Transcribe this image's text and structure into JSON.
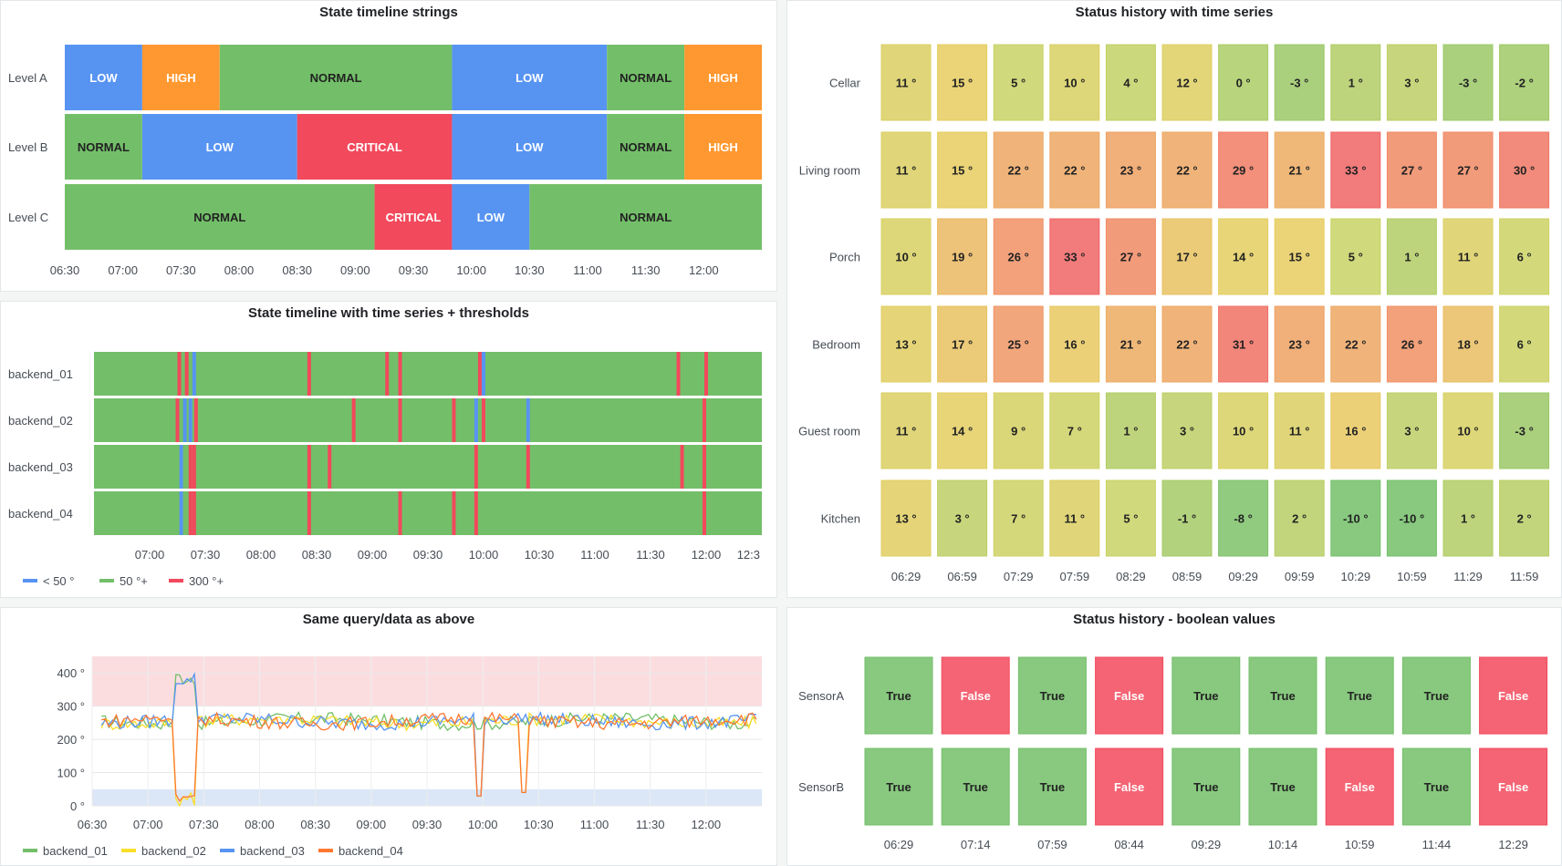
{
  "panels": {
    "state_strings": {
      "title": "State timeline strings",
      "rows": [
        {
          "label": "Level A",
          "segments": [
            [
              "06:30",
              "07:10",
              "LOW"
            ],
            [
              "07:10",
              "07:50",
              "HIGH"
            ],
            [
              "07:50",
              "09:50",
              "NORMAL"
            ],
            [
              "09:50",
              "11:10",
              "LOW"
            ],
            [
              "11:10",
              "11:50",
              "NORMAL"
            ],
            [
              "11:50",
              "12:30",
              "HIGH"
            ]
          ]
        },
        {
          "label": "Level B",
          "segments": [
            [
              "06:30",
              "07:10",
              "NORMAL"
            ],
            [
              "07:10",
              "08:30",
              "LOW"
            ],
            [
              "08:30",
              "09:50",
              "CRITICAL"
            ],
            [
              "09:50",
              "11:10",
              "LOW"
            ],
            [
              "11:10",
              "11:50",
              "NORMAL"
            ],
            [
              "11:50",
              "12:30",
              "HIGH"
            ]
          ]
        },
        {
          "label": "Level C",
          "segments": [
            [
              "06:30",
              "09:10",
              "NORMAL"
            ],
            [
              "09:10",
              "09:50",
              "CRITICAL"
            ],
            [
              "09:50",
              "10:30",
              "LOW"
            ],
            [
              "10:30",
              "12:30",
              "NORMAL"
            ]
          ]
        }
      ],
      "state_colors": {
        "LOW": "#5794f2",
        "HIGH": "#ff9830",
        "NORMAL": "#73bf69",
        "CRITICAL": "#f2495c"
      },
      "ticks": [
        "06:30",
        "07:00",
        "07:30",
        "08:00",
        "08:30",
        "09:00",
        "09:30",
        "10:00",
        "10:30",
        "11:00",
        "11:30",
        "12:00"
      ]
    },
    "state_ts": {
      "title": "State timeline with time series + thresholds",
      "rows": [
        {
          "label": "backend_01",
          "marks": [
            [
              "07:16",
              "r"
            ],
            [
              "07:20",
              "r"
            ],
            [
              "07:24",
              "b"
            ],
            [
              "08:26",
              "r"
            ],
            [
              "09:08",
              "r"
            ],
            [
              "09:15",
              "r"
            ],
            [
              "09:58",
              "r"
            ],
            [
              "10:00",
              "b"
            ],
            [
              "12:00",
              "r"
            ],
            [
              "11:45",
              "r"
            ]
          ]
        },
        {
          "label": "backend_02",
          "marks": [
            [
              "07:15",
              "r"
            ],
            [
              "07:19",
              "b"
            ],
            [
              "07:22",
              "b"
            ],
            [
              "07:25",
              "r"
            ],
            [
              "08:50",
              "r"
            ],
            [
              "09:15",
              "r"
            ],
            [
              "09:44",
              "r"
            ],
            [
              "09:56",
              "b"
            ],
            [
              "10:00",
              "r"
            ],
            [
              "10:24",
              "b"
            ],
            [
              "11:59",
              "r"
            ]
          ]
        },
        {
          "label": "backend_03",
          "marks": [
            [
              "07:17",
              "b"
            ],
            [
              "07:22",
              "r"
            ],
            [
              "07:24",
              "r"
            ],
            [
              "08:26",
              "r"
            ],
            [
              "08:37",
              "r"
            ],
            [
              "09:56",
              "r"
            ],
            [
              "10:24",
              "r"
            ],
            [
              "11:47",
              "r"
            ],
            [
              "11:59",
              "r"
            ]
          ]
        },
        {
          "label": "backend_04",
          "marks": [
            [
              "07:17",
              "b"
            ],
            [
              "07:22",
              "r"
            ],
            [
              "07:24",
              "r"
            ],
            [
              "08:26",
              "r"
            ],
            [
              "09:15",
              "r"
            ],
            [
              "09:44",
              "r"
            ],
            [
              "09:56",
              "r"
            ],
            [
              "11:59",
              "r"
            ]
          ]
        }
      ],
      "colors": {
        "g": "#73bf69",
        "r": "#f2495c",
        "b": "#5794f2"
      },
      "ticks": [
        "07:00",
        "07:30",
        "08:00",
        "08:30",
        "09:00",
        "09:30",
        "10:00",
        "10:30",
        "11:00",
        "11:30",
        "12:00",
        "12:3"
      ],
      "legend": [
        {
          "label": "< 50 °",
          "color": "#5794f2"
        },
        {
          "label": "50 °+",
          "color": "#73bf69"
        },
        {
          "label": "300 °+",
          "color": "#f2495c"
        }
      ]
    },
    "same_query": {
      "title": "Same query/data as above",
      "y_ticks": [
        "400 °",
        "300 °",
        "200 °",
        "100 °",
        "0 °"
      ],
      "x_ticks": [
        "06:30",
        "07:00",
        "07:30",
        "08:00",
        "08:30",
        "09:00",
        "09:30",
        "10:00",
        "10:30",
        "11:00",
        "11:30",
        "12:00"
      ],
      "legend": [
        {
          "label": "backend_01",
          "color": "#73bf69"
        },
        {
          "label": "backend_02",
          "color": "#fade2a"
        },
        {
          "label": "backend_03",
          "color": "#5794f2"
        },
        {
          "label": "backend_04",
          "color": "#ff7830"
        }
      ]
    },
    "status_ts": {
      "title": "Status history with time series",
      "rows": [
        {
          "label": "Cellar",
          "values": [
            11,
            15,
            5,
            10,
            4,
            12,
            0,
            -3,
            1,
            3,
            -3,
            -2
          ]
        },
        {
          "label": "Living room",
          "values": [
            11,
            15,
            22,
            22,
            23,
            22,
            29,
            21,
            33,
            27,
            27,
            30
          ]
        },
        {
          "label": "Porch",
          "values": [
            10,
            19,
            26,
            33,
            27,
            17,
            14,
            15,
            5,
            1,
            11,
            6
          ]
        },
        {
          "label": "Bedroom",
          "values": [
            13,
            17,
            25,
            16,
            21,
            22,
            31,
            23,
            22,
            26,
            18,
            6
          ]
        },
        {
          "label": "Guest room",
          "values": [
            11,
            14,
            9,
            7,
            1,
            3,
            10,
            11,
            16,
            3,
            10,
            -3
          ]
        },
        {
          "label": "Kitchen",
          "values": [
            13,
            3,
            7,
            11,
            5,
            -1,
            -8,
            2,
            -10,
            -10,
            1,
            2
          ]
        }
      ],
      "unit": "°",
      "ticks": [
        "06:29",
        "06:59",
        "07:29",
        "07:59",
        "08:29",
        "08:59",
        "09:29",
        "09:59",
        "10:29",
        "10:59",
        "11:29",
        "11:59"
      ]
    },
    "status_bool": {
      "title": "Status history - boolean values",
      "rows": [
        {
          "label": "SensorA",
          "values": [
            "True",
            "False",
            "True",
            "False",
            "True",
            "True",
            "True",
            "True",
            "False"
          ]
        },
        {
          "label": "SensorB",
          "values": [
            "True",
            "True",
            "True",
            "False",
            "True",
            "True",
            "False",
            "True",
            "False"
          ]
        }
      ],
      "colors": {
        "True": "#73bf69",
        "False": "#f2495c"
      },
      "ticks": [
        "06:29",
        "07:14",
        "07:59",
        "08:44",
        "09:29",
        "10:14",
        "10:59",
        "11:44",
        "12:29"
      ]
    }
  }
}
